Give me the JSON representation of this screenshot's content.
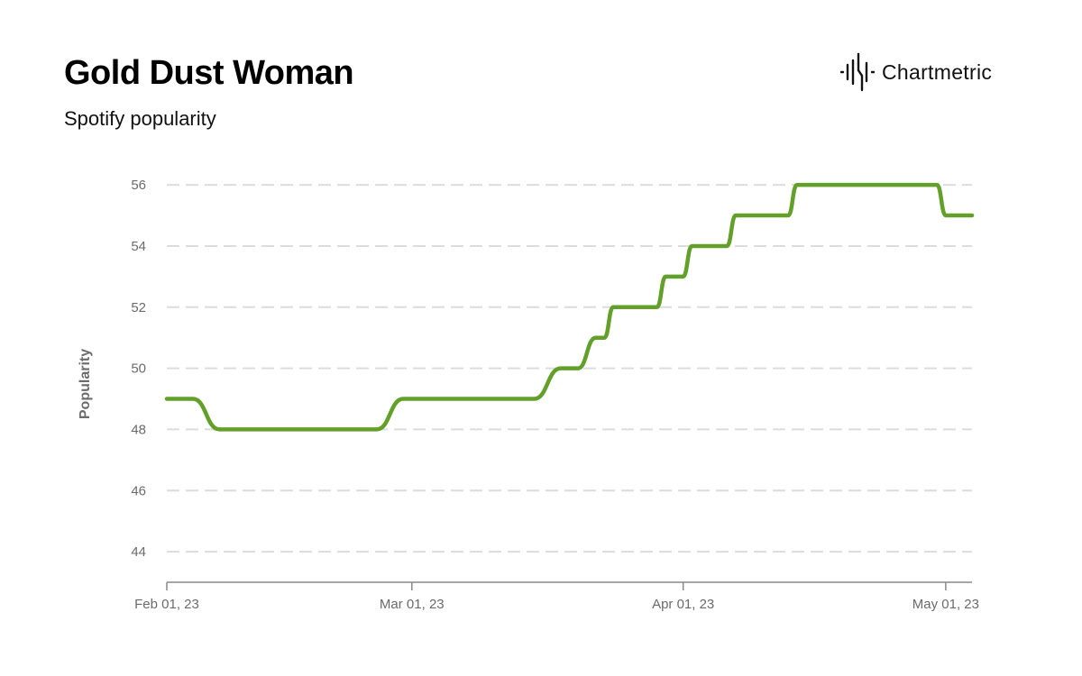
{
  "title": "Gold Dust Woman",
  "subtitle": "Spotify popularity",
  "brand": {
    "name": "Chartmetric",
    "icon": "waveform-logo-icon"
  },
  "chart_data": {
    "type": "line",
    "title": "Gold Dust Woman",
    "subtitle": "Spotify popularity",
    "xlabel": "",
    "ylabel": "Popularity",
    "ylim": [
      43,
      56.8
    ],
    "xlim": [
      "2023-02-01",
      "2023-05-04"
    ],
    "yticks": [
      44,
      46,
      48,
      50,
      52,
      54,
      56
    ],
    "xticks": [
      {
        "date": "2023-02-01",
        "label": "Feb 01, 23"
      },
      {
        "date": "2023-03-01",
        "label": "Mar 01, 23"
      },
      {
        "date": "2023-04-01",
        "label": "Apr 01, 23"
      },
      {
        "date": "2023-05-01",
        "label": "May 01, 23"
      }
    ],
    "grid": true,
    "legend": "none",
    "series": [
      {
        "color": "#62a02a",
        "points": [
          {
            "x": "2023-02-01",
            "y": 49
          },
          {
            "x": "2023-02-04",
            "y": 49
          },
          {
            "x": "2023-02-07",
            "y": 48
          },
          {
            "x": "2023-02-25",
            "y": 48
          },
          {
            "x": "2023-02-28",
            "y": 49
          },
          {
            "x": "2023-03-15",
            "y": 49
          },
          {
            "x": "2023-03-18",
            "y": 50
          },
          {
            "x": "2023-03-20",
            "y": 50
          },
          {
            "x": "2023-03-22",
            "y": 51
          },
          {
            "x": "2023-03-23",
            "y": 51
          },
          {
            "x": "2023-03-24",
            "y": 52
          },
          {
            "x": "2023-03-29",
            "y": 52
          },
          {
            "x": "2023-03-30",
            "y": 53
          },
          {
            "x": "2023-04-01",
            "y": 53
          },
          {
            "x": "2023-04-02",
            "y": 54
          },
          {
            "x": "2023-04-06",
            "y": 54
          },
          {
            "x": "2023-04-07",
            "y": 55
          },
          {
            "x": "2023-04-13",
            "y": 55
          },
          {
            "x": "2023-04-14",
            "y": 56
          },
          {
            "x": "2023-04-30",
            "y": 56
          },
          {
            "x": "2023-05-01",
            "y": 55
          },
          {
            "x": "2023-05-04",
            "y": 55
          }
        ]
      }
    ]
  }
}
